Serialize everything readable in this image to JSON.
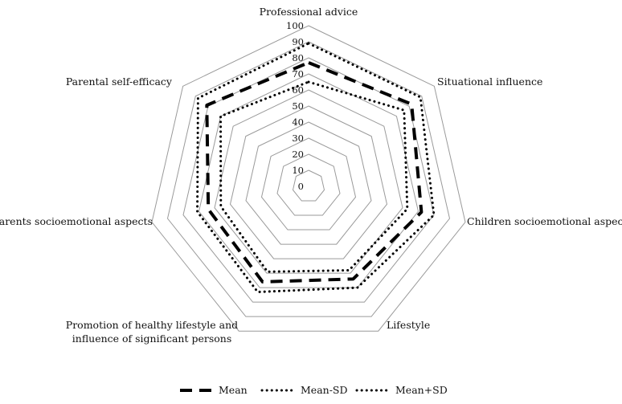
{
  "chart_data": {
    "type": "radar",
    "axes": [
      "Professional advice",
      "Situational influence",
      "Children socioemotional aspects",
      "Lifestyle",
      "Promotion of healthy lifestyle and\ninfluence of significant persons",
      "Parents socioemotional aspects",
      "Parental self-efficacy"
    ],
    "r_ticks": [
      0,
      10,
      20,
      30,
      40,
      50,
      60,
      70,
      80,
      90,
      100
    ],
    "rlim": [
      0,
      100
    ],
    "grid": true,
    "series": [
      {
        "name": "Mean",
        "values": [
          77,
          82,
          72,
          64,
          66,
          64,
          81
        ],
        "style": "dashed",
        "color": "#000000"
      },
      {
        "name": "Mean-SD",
        "values": [
          65,
          76,
          63,
          58,
          59,
          56,
          70
        ],
        "style": "dotted",
        "color": "#000000"
      },
      {
        "name": "Mean+SD",
        "values": [
          89,
          89,
          80,
          70,
          73,
          71,
          88
        ],
        "style": "dotted",
        "color": "#000000"
      }
    ],
    "legend": {
      "position": "bottom"
    }
  }
}
